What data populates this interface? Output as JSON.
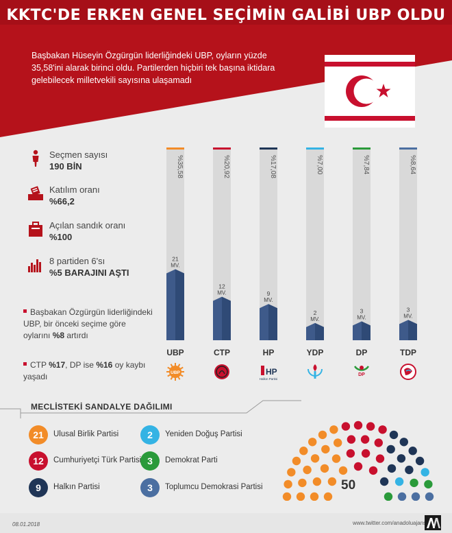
{
  "header": {
    "title": "KKTC'DE ERKEN GENEL SEÇİMİN GALİBİ UBP OLDU",
    "subtitle": "Başbakan Hüseyin Özgürgün liderliğindeki UBP, oyların yüzde 35,58'ini alarak birinci oldu. Partilerden hiçbiri tek başına iktidara gelebilecek milletvekili sayısına ulaşamadı"
  },
  "stats": [
    {
      "label": "Seçmen sayısı",
      "value": "190 BİN",
      "icon": "voter-icon"
    },
    {
      "label": "Katılım oranı",
      "value": "%66,2",
      "icon": "ballot-icon"
    },
    {
      "label": "Açılan sandık oranı",
      "value": "%100",
      "icon": "ballot-box-icon"
    },
    {
      "label": "8 partiden 6'sı",
      "value": "%5 BARAJINI AŞTI",
      "icon": "bar-chart-icon"
    }
  ],
  "notes": {
    "note1_pre": "Başbakan Özgürgün liderliğindeki UBP, bir önceki seçime göre oylarını",
    "note1_bold": "%8",
    "note1_post": "artırdı",
    "note2_pre": "CTP",
    "note2_bold1": "%17",
    "note2_mid": ", DP ise",
    "note2_bold2": "%16",
    "note2_post": "oy kaybı yaşadı"
  },
  "chart_data": {
    "type": "bar",
    "categories": [
      "UBP",
      "CTP",
      "HP",
      "YDP",
      "DP",
      "TDP"
    ],
    "series": [
      {
        "values": [
          35.58,
          20.92,
          17.08,
          7.0,
          7.84,
          8.64
        ]
      }
    ],
    "vote_labels": [
      "%35,58",
      "%20,92",
      "%17,08",
      "%7,00",
      "%7,84",
      "%8,64"
    ],
    "seats": [
      21,
      12,
      9,
      2,
      3,
      3
    ],
    "seat_unit": "MV.",
    "ylim": [
      0,
      100
    ],
    "party_colors": [
      "#f28c28",
      "#c8102e",
      "#1f3556",
      "#34b3e4",
      "#2a9a3a",
      "#4b6fa1"
    ]
  },
  "party_logos": {
    "ubp": "UBP",
    "hp": "HP",
    "hp_sub": "Halkın Partisi",
    "dp": "DP"
  },
  "seat_distribution": {
    "title": "MECLİSTEKİ SANDALYE DAĞILIMI",
    "total": "50",
    "parties": [
      {
        "count": "21",
        "name": "Ulusal Birlik Partisi",
        "color": "#f28c28"
      },
      {
        "count": "2",
        "name": "Yeniden Doğuş Partisi",
        "color": "#34b3e4"
      },
      {
        "count": "12",
        "name": "Cumhuriyetçi Türk Partisi",
        "color": "#c8102e"
      },
      {
        "count": "3",
        "name": "Demokrat Parti",
        "color": "#2a9a3a"
      },
      {
        "count": "9",
        "name": "Halkın Partisi",
        "color": "#1f3556"
      },
      {
        "count": "3",
        "name": "Toplumcu Demokrasi Partisi",
        "color": "#4b6fa1"
      }
    ]
  },
  "footer": {
    "date": "08.01.2018",
    "site": "www.twitter.com/anadoluajansi",
    "logo": "AA"
  },
  "colors": {
    "header_red": "#b5121b",
    "bar_blue": "#3e5a8a"
  }
}
